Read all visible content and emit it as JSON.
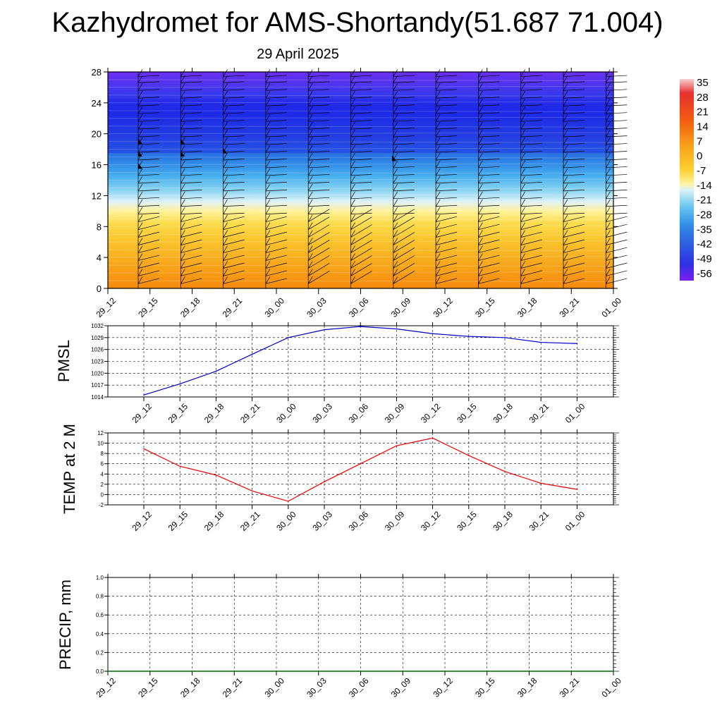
{
  "header": {
    "title": "Kazhydromet for AMS-Shortandy(51.687 71.004)",
    "date": "29 April 2025"
  },
  "colorbar": {
    "labels": [
      "35",
      "28",
      "21",
      "14",
      "7",
      "0",
      "-7",
      "-14",
      "-21",
      "-28",
      "-35",
      "-42",
      "-49",
      "-56"
    ],
    "colors": [
      "#f2c0c0",
      "#e02020",
      "#f45010",
      "#f89010",
      "#fcc020",
      "#fde050",
      "#fef8a0",
      "#d8f0f8",
      "#70d0f0",
      "#30a0e8",
      "#3070e0",
      "#2848d8",
      "#4030e0",
      "#7020f0"
    ]
  },
  "chart_data": [
    {
      "type": "heatmap",
      "name": "cross-section",
      "x_ticks": [
        "29_12",
        "29_15",
        "29_18",
        "29_21",
        "30_00",
        "30_03",
        "30_06",
        "30_09",
        "30_12",
        "30_15",
        "30_18",
        "30_21",
        "01_00"
      ],
      "y_ticks": [
        0,
        4,
        8,
        12,
        16,
        20,
        24,
        28
      ],
      "ylim": [
        0,
        28
      ],
      "colorbar_range": [
        -56,
        35
      ]
    },
    {
      "type": "line",
      "name": "pmsl",
      "ylabel": "PMSL",
      "x": [
        "29_12",
        "29_15",
        "29_18",
        "29_21",
        "30_00",
        "30_03",
        "30_06",
        "30_09",
        "30_12",
        "30_15",
        "30_18",
        "30_21",
        "01_00"
      ],
      "values": [
        1014.5,
        1017.3,
        1020.5,
        1024.8,
        1029.0,
        1031.0,
        1031.8,
        1031.2,
        1030.0,
        1029.3,
        1029.0,
        1027.8,
        1027.5
      ],
      "yticks": [
        1014,
        1017,
        1020,
        1023,
        1026,
        1029,
        1032
      ],
      "ylim": [
        1014,
        1032
      ],
      "color": "#0000cc"
    },
    {
      "type": "line",
      "name": "temp",
      "ylabel": "TEMP at 2 M",
      "x": [
        "29_12",
        "29_15",
        "29_18",
        "29_21",
        "30_00",
        "30_03",
        "30_06",
        "30_09",
        "30_12",
        "30_15",
        "30_18",
        "30_21",
        "01_00"
      ],
      "values": [
        8.9,
        5.5,
        3.8,
        0.7,
        -1.3,
        2.5,
        6.0,
        9.5,
        11.0,
        7.6,
        4.5,
        2.2,
        1.0
      ],
      "yticks": [
        -2,
        0,
        2,
        4,
        6,
        8,
        10,
        12
      ],
      "ylim": [
        -2,
        12
      ],
      "color": "#ee0000"
    },
    {
      "type": "line",
      "name": "precip",
      "ylabel": "PRECIP, mm",
      "x": [
        "29_12",
        "29_15",
        "29_18",
        "29_21",
        "30_00",
        "30_03",
        "30_06",
        "30_09",
        "30_12",
        "30_15",
        "30_18",
        "30_21",
        "01_00"
      ],
      "values": [
        0,
        0,
        0,
        0,
        0,
        0,
        0,
        0,
        0,
        0,
        0,
        0,
        0
      ],
      "yticks": [
        "0.0",
        "0.2",
        "0.4",
        "0.6",
        "0.8",
        "1.0"
      ],
      "ylim": [
        0,
        1
      ],
      "color": "#006600"
    }
  ]
}
